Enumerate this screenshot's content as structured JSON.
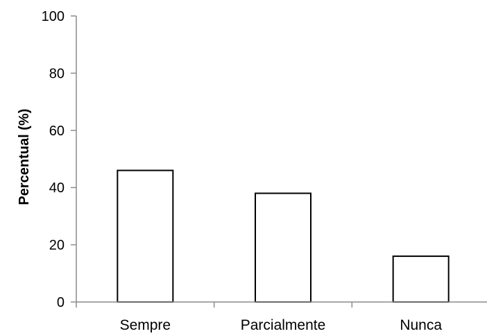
{
  "chart_data": {
    "type": "bar",
    "categories": [
      "Sempre",
      "Parcialmente",
      "Nunca"
    ],
    "values": [
      46,
      38,
      16
    ],
    "xlabel": "",
    "ylabel": "Percentual (%)",
    "ylim": [
      0,
      100
    ],
    "yticks": [
      0,
      20,
      40,
      60,
      80,
      100
    ],
    "grid": false,
    "legend": "none",
    "colors": {
      "bar_fill": "#ffffff",
      "bar_stroke": "#000000",
      "axis": "#8c8c8c"
    }
  }
}
